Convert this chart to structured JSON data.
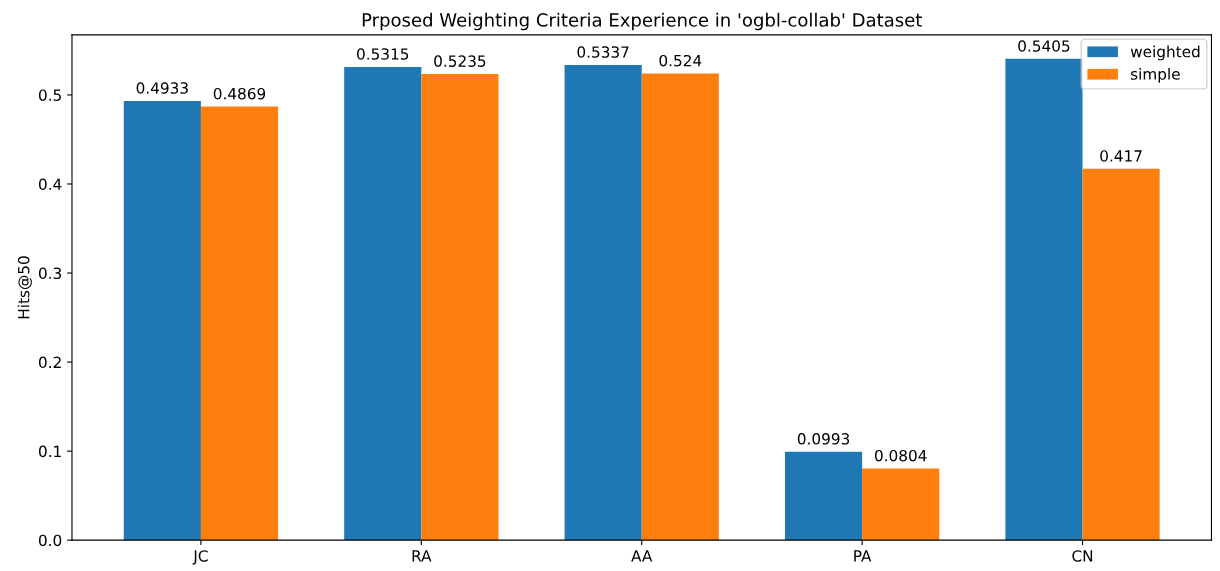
{
  "chart_data": {
    "type": "bar",
    "title": "Prposed Weighting Criteria Experience in 'ogbl-collab' Dataset",
    "ylabel": "Hits@50",
    "categories": [
      "JC",
      "RA",
      "AA",
      "PA",
      "CN"
    ],
    "series": [
      {
        "name": "weighted",
        "color": "#1f77b4",
        "values": [
          0.4933,
          0.5315,
          0.5337,
          0.0993,
          0.5405
        ]
      },
      {
        "name": "simple",
        "color": "#ff7f0e",
        "values": [
          0.4869,
          0.5235,
          0.524,
          0.0804,
          0.417
        ]
      }
    ],
    "ylim": [
      0,
      0.5675
    ],
    "yticks": [
      {
        "value": 0,
        "label": "0.0"
      },
      0.1,
      0.2,
      0.3,
      0.4,
      0.5
    ],
    "data_labels": true,
    "legend": "top right",
    "grid": false
  }
}
